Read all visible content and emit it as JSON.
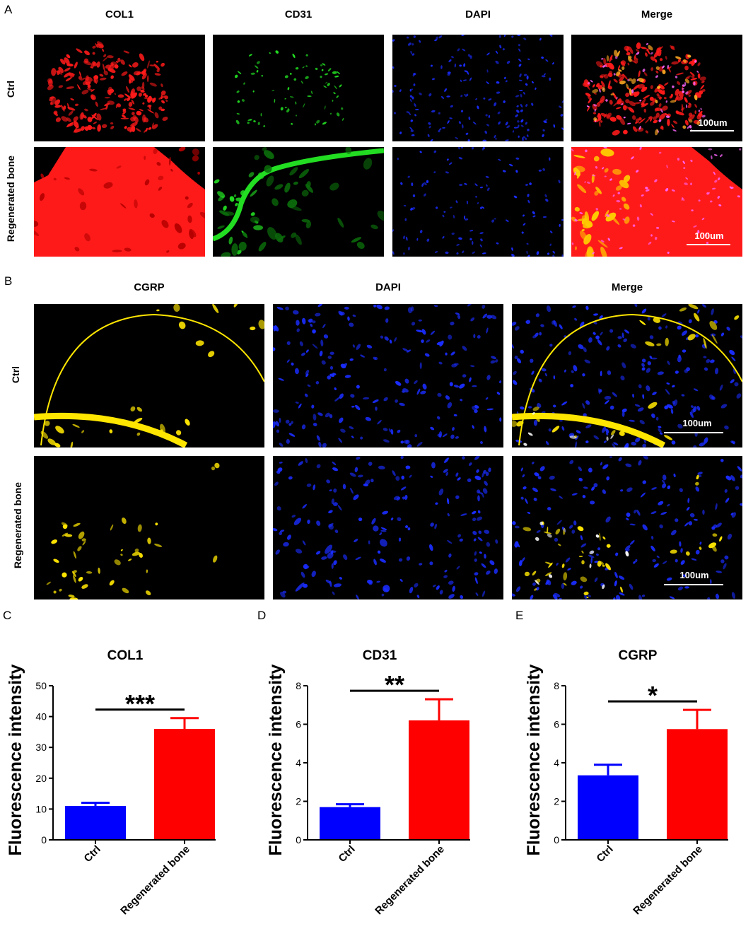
{
  "panel_A": {
    "letter": "A",
    "columns": [
      "COL1",
      "CD31",
      "DAPI",
      "Merge"
    ],
    "rows": [
      "Ctrl",
      "Regenerated bone"
    ],
    "scalebar": "100um"
  },
  "panel_B": {
    "letter": "B",
    "columns": [
      "CGRP",
      "DAPI",
      "Merge"
    ],
    "rows": [
      "Ctrl",
      "Regenerated bone"
    ],
    "scalebar": "100um"
  },
  "colors": {
    "ctrl_bar": "#0000ff",
    "regen_bar": "#ff0000",
    "col1": "#ff1a1a",
    "cd31": "#22dd22",
    "dapi": "#1a2dff",
    "cgrp": "#ffe600"
  },
  "chart_data": [
    {
      "letter": "C",
      "type": "bar",
      "title": "COL1",
      "ylabel": "Fluorescence intensity",
      "categories": [
        "Ctrl",
        "Regenerated bone"
      ],
      "values": [
        11,
        36
      ],
      "errors": [
        1,
        3.5
      ],
      "ylim": [
        0,
        50
      ],
      "yticks": [
        0,
        10,
        20,
        30,
        40,
        50
      ],
      "significance": "***"
    },
    {
      "letter": "D",
      "type": "bar",
      "title": "CD31",
      "ylabel": "Fluorescence intensity",
      "categories": [
        "Ctrl",
        "Regenerated bone"
      ],
      "values": [
        1.7,
        6.2
      ],
      "errors": [
        0.15,
        1.1
      ],
      "ylim": [
        0,
        8
      ],
      "yticks": [
        0,
        2,
        4,
        6,
        8
      ],
      "significance": "**"
    },
    {
      "letter": "E",
      "type": "bar",
      "title": "CGRP",
      "ylabel": "Fluorescence intensity",
      "categories": [
        "Ctrl",
        "Regenerated bone"
      ],
      "values": [
        3.35,
        5.75
      ],
      "errors": [
        0.55,
        1.0
      ],
      "ylim": [
        0,
        8
      ],
      "yticks": [
        0,
        2,
        4,
        6,
        8
      ],
      "significance": "*"
    }
  ]
}
